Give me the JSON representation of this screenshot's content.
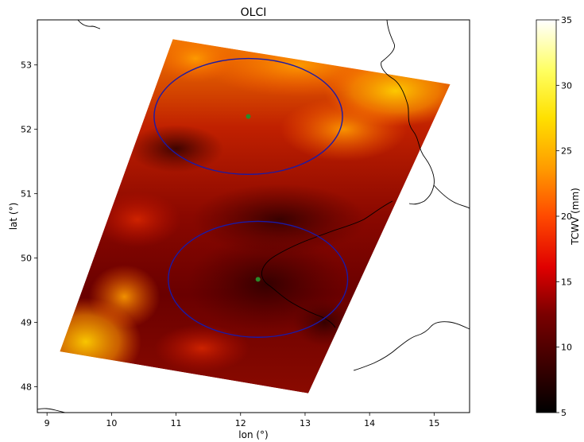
{
  "chart_data": {
    "type": "heatmap",
    "title": "OLCI",
    "xlabel": "lon (°)",
    "ylabel": "lat (°)",
    "xlim": [
      8.85,
      15.55
    ],
    "ylim": [
      47.6,
      53.7
    ],
    "x_ticks": [
      9,
      10,
      11,
      12,
      13,
      14,
      15
    ],
    "y_ticks": [
      48,
      49,
      50,
      51,
      52,
      53
    ],
    "grid": false,
    "swath_corners": [
      {
        "lon": 10.95,
        "lat": 53.4
      },
      {
        "lon": 15.25,
        "lat": 52.7
      },
      {
        "lon": 13.05,
        "lat": 47.9
      },
      {
        "lon": 9.2,
        "lat": 48.55
      }
    ],
    "circles": [
      {
        "center_lon": 12.12,
        "center_lat": 52.2,
        "radius_lon": 1.46,
        "radius_lat": 0.9,
        "color": "#1a1aa8"
      },
      {
        "center_lon": 12.27,
        "center_lat": 49.67,
        "radius_lon": 1.39,
        "radius_lat": 0.9,
        "color": "#1a1aa8"
      }
    ],
    "points": [
      {
        "lon": 12.12,
        "lat": 52.2,
        "color": "#2a8a2a"
      },
      {
        "lon": 12.27,
        "lat": 49.67,
        "color": "#2a8a2a"
      }
    ],
    "colorbar": {
      "label": "TCWV (mm)",
      "colormap": "hot",
      "range": [
        5,
        35
      ],
      "ticks": [
        5,
        10,
        15,
        20,
        25,
        30,
        35
      ]
    }
  }
}
